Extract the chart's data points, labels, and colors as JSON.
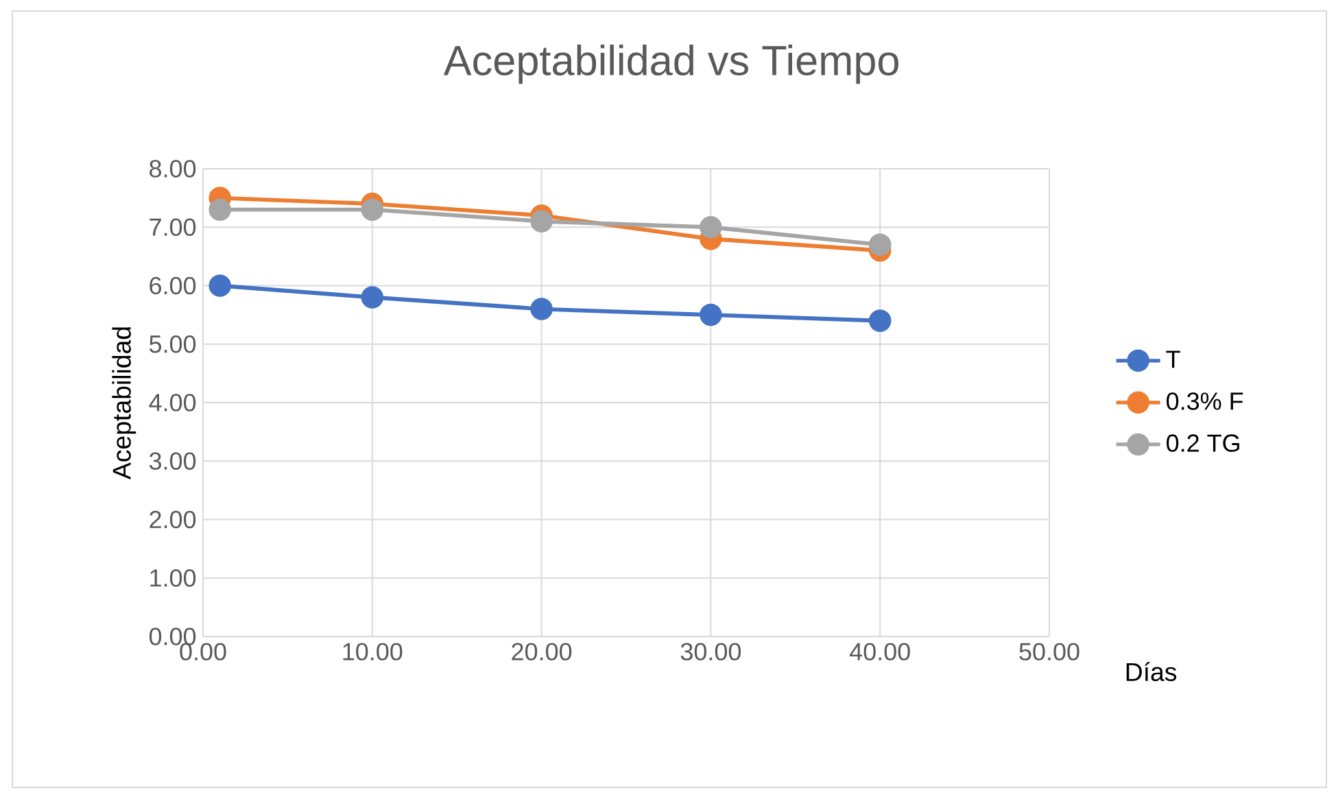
{
  "chart_data": {
    "type": "line",
    "title": "Aceptabilidad  vs Tiempo",
    "xlabel": "Días",
    "ylabel": "Aceptabilidad",
    "x": [
      1,
      10,
      20,
      30,
      40
    ],
    "series": [
      {
        "name": "T",
        "color": "#4472c4",
        "values": [
          6.0,
          5.8,
          5.6,
          5.5,
          5.4
        ]
      },
      {
        "name": "0.3% F",
        "color": "#ed7d31",
        "values": [
          7.5,
          7.4,
          7.2,
          6.8,
          6.6
        ]
      },
      {
        "name": "0.2 TG",
        "color": "#a5a5a5",
        "values": [
          7.3,
          7.3,
          7.1,
          7.0,
          6.7
        ]
      }
    ],
    "xlim": [
      0,
      50
    ],
    "ylim": [
      0,
      8
    ],
    "xticks": [
      {
        "value": 0,
        "label": "0.00"
      },
      {
        "value": 10,
        "label": "10.00"
      },
      {
        "value": 20,
        "label": "20.00"
      },
      {
        "value": 30,
        "label": "30.00"
      },
      {
        "value": 40,
        "label": "40.00"
      },
      {
        "value": 50,
        "label": "50.00"
      }
    ],
    "yticks": [
      {
        "value": 0,
        "label": "0.00"
      },
      {
        "value": 1,
        "label": "1.00"
      },
      {
        "value": 2,
        "label": "2.00"
      },
      {
        "value": 3,
        "label": "3.00"
      },
      {
        "value": 4,
        "label": "4.00"
      },
      {
        "value": 5,
        "label": "5.00"
      },
      {
        "value": 6,
        "label": "6.00"
      },
      {
        "value": 7,
        "label": "7.00"
      },
      {
        "value": 8,
        "label": "8.00"
      }
    ],
    "grid": true,
    "legend": "right",
    "marker": "circle",
    "line_style": "solid"
  }
}
